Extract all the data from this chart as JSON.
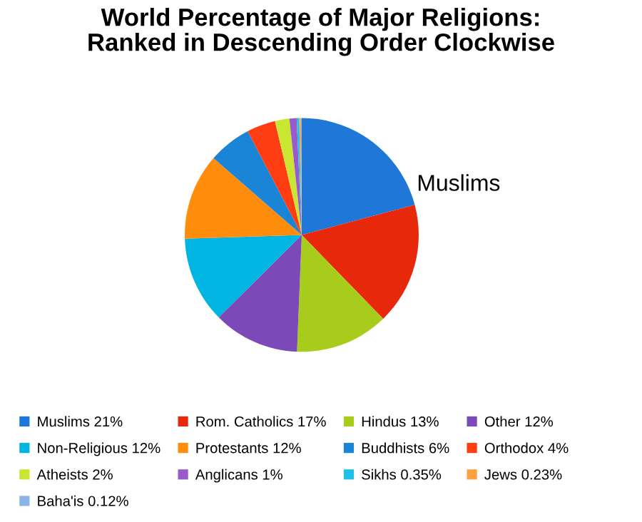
{
  "chart_data": {
    "type": "pie",
    "title": "World Percentage of Major Religions:\nRanked in Descending Order Clockwise",
    "categories": [
      "Muslims",
      "Rom. Catholics",
      "Hindus",
      "Other",
      "Non-Religious",
      "Protestants",
      "Buddhists",
      "Orthodox",
      "Atheists",
      "Anglicans",
      "Sikhs",
      "Jews",
      "Baha'is"
    ],
    "values": [
      21,
      17,
      13,
      12,
      12,
      12,
      6,
      4,
      2,
      1,
      0.35,
      0.23,
      0.12
    ],
    "value_labels": [
      "21%",
      "17%",
      "13%",
      "12%",
      "12%",
      "12%",
      "6%",
      "4%",
      "2%",
      "1%",
      "0.35%",
      "0.23%",
      "0.12%"
    ],
    "colors": [
      "#1f78d8",
      "#e8280a",
      "#a8cc1c",
      "#7b4ab8",
      "#00b5e2",
      "#ff8c0a",
      "#1a85d6",
      "#ff3d12",
      "#c8e632",
      "#9a5acb",
      "#20c0e8",
      "#ffa040",
      "#8ab4e8"
    ],
    "annotations": [
      {
        "text": "Muslims",
        "x": "Muslims"
      }
    ],
    "legend": "bottom"
  }
}
